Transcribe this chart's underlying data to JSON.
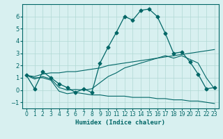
{
  "xlabel": "Humidex (Indice chaleur)",
  "bg_color": "#d8f0f0",
  "line_color": "#006666",
  "grid_color": "#b0d8d4",
  "xlim": [
    -0.5,
    23.5
  ],
  "ylim": [
    -1.5,
    7.0
  ],
  "yticks": [
    -1,
    0,
    1,
    2,
    3,
    4,
    5,
    6
  ],
  "xticks": [
    0,
    1,
    2,
    3,
    4,
    5,
    6,
    7,
    8,
    9,
    10,
    11,
    12,
    13,
    14,
    15,
    16,
    17,
    18,
    19,
    20,
    21,
    22,
    23
  ],
  "series1_x": [
    0,
    1,
    2,
    3,
    4,
    5,
    6,
    7,
    8,
    9,
    10,
    11,
    12,
    13,
    14,
    15,
    16,
    17,
    18,
    19,
    20,
    21,
    22,
    23
  ],
  "series1_y": [
    1.2,
    0.1,
    1.5,
    1.0,
    0.5,
    0.2,
    -0.2,
    0.1,
    -0.2,
    2.2,
    3.5,
    4.7,
    6.0,
    5.7,
    6.5,
    6.6,
    6.0,
    4.6,
    3.0,
    3.1,
    2.3,
    1.3,
    0.1,
    0.2
  ],
  "series2_x": [
    0,
    1,
    2,
    3,
    4,
    5,
    6,
    7,
    8,
    9,
    10,
    11,
    12,
    13,
    14,
    15,
    16,
    17,
    18,
    19,
    20,
    21,
    22,
    23
  ],
  "series2_y": [
    1.2,
    1.0,
    1.0,
    0.8,
    -0.1,
    -0.3,
    -0.2,
    -0.3,
    -0.4,
    -0.4,
    -0.5,
    -0.5,
    -0.5,
    -0.6,
    -0.6,
    -0.6,
    -0.7,
    -0.7,
    -0.8,
    -0.8,
    -0.9,
    -0.9,
    -1.0,
    -1.1
  ],
  "series3_x": [
    0,
    1,
    2,
    3,
    4,
    5,
    6,
    7,
    8,
    9,
    10,
    11,
    12,
    13,
    14,
    15,
    16,
    17,
    18,
    19,
    20,
    21,
    22,
    23
  ],
  "series3_y": [
    1.2,
    1.1,
    1.3,
    1.4,
    1.4,
    1.5,
    1.5,
    1.6,
    1.7,
    1.8,
    2.0,
    2.1,
    2.2,
    2.3,
    2.4,
    2.5,
    2.6,
    2.7,
    2.8,
    2.9,
    3.0,
    3.1,
    3.2,
    3.3
  ],
  "series4_x": [
    0,
    1,
    2,
    3,
    4,
    5,
    6,
    7,
    8,
    9,
    10,
    11,
    12,
    13,
    14,
    15,
    16,
    17,
    18,
    19,
    20,
    21,
    22,
    23
  ],
  "series4_y": [
    1.2,
    0.9,
    1.1,
    0.9,
    0.2,
    0.0,
    0.05,
    0.0,
    0.1,
    0.6,
    1.1,
    1.4,
    1.8,
    2.0,
    2.2,
    2.4,
    2.6,
    2.8,
    2.6,
    2.8,
    2.5,
    2.2,
    1.0,
    0.1
  ]
}
